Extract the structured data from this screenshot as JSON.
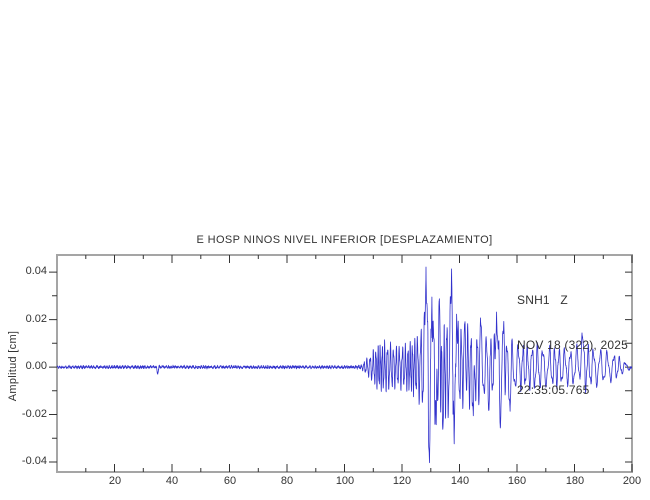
{
  "window": {
    "background": "#ffffff"
  },
  "legend": {
    "lines": [
      "SNH1   Z",
      "NOV 18 (322), 2025",
      "22:35:05.765"
    ]
  },
  "chart_data": {
    "type": "line",
    "title": "E HOSP NINOS NIVEL INFERIOR [DESPLAZAMIENTO]",
    "xlabel": "",
    "ylabel": "Amplitud [cm]",
    "station": "SNH1",
    "component": "Z",
    "date_label": "NOV 18 (322), 2025",
    "start_time_label": "22:35:05.765",
    "xlim": [
      0,
      200
    ],
    "ylim": [
      -0.0442,
      0.0472
    ],
    "grid": false,
    "legend_position": "upper-right-inside",
    "trace_color": "#3232cc",
    "frame_color": "#a5a5a5",
    "tick_color": "#333333",
    "text_color": "#333333",
    "x_major_ticks": [
      20,
      40,
      60,
      80,
      100,
      120,
      140,
      160,
      180,
      200
    ],
    "x_tick_labels": [
      "20",
      "40",
      "60",
      "80",
      "100",
      "120",
      "140",
      "160",
      "180",
      "200"
    ],
    "x_minor_ticks": [
      10,
      30,
      50,
      70,
      90,
      110,
      130,
      150,
      170,
      190
    ],
    "y_major_ticks": [
      0.04,
      0.02,
      0,
      -0.02,
      -0.04
    ],
    "y_tick_labels": [
      "0.04",
      "0.02",
      "0.00",
      "-0.02",
      "-0.04"
    ],
    "y_minor_ticks": [
      0.03,
      0.01,
      -0.01,
      -0.03
    ],
    "signal": {
      "description": "Vertical displacement seismogram: flat noise floor 0-105 s with a tiny glitch at 35 s, P-wave onset near 107 s, strong S-wave spikes peaking +0.043/-0.041 cm near 128-130 s, second spike cluster +0.041/-0.033 cm near 137-138 s, ragged coda decaying to zero by 200 s",
      "units": "cm",
      "peak_amplitude_cm": 0.043,
      "p_wave_onset_s": 107,
      "strong_motion_window_s": [
        127,
        140
      ],
      "sample_step_s": 0.05,
      "seed": 1337,
      "noise_amp": 0.00042,
      "envelope_points": [
        [
          0,
          0.0004
        ],
        [
          34.2,
          0.0004
        ],
        [
          35,
          0.0012
        ],
        [
          35.8,
          0.0004
        ],
        [
          104,
          0.0004
        ],
        [
          106,
          0.0008
        ],
        [
          107.5,
          0.0035
        ],
        [
          109,
          0.005
        ],
        [
          110.5,
          0.008
        ],
        [
          112,
          0.01
        ],
        [
          114,
          0.011
        ],
        [
          116,
          0.01
        ],
        [
          118,
          0.009
        ],
        [
          120,
          0.0095
        ],
        [
          122,
          0.01
        ],
        [
          124,
          0.012
        ],
        [
          126,
          0.015
        ],
        [
          127.5,
          0.021
        ],
        [
          129,
          0.028
        ],
        [
          130.5,
          0.024
        ],
        [
          132,
          0.024
        ],
        [
          133.5,
          0.026
        ],
        [
          135,
          0.021
        ],
        [
          136.5,
          0.024
        ],
        [
          138,
          0.026
        ],
        [
          139.5,
          0.019
        ],
        [
          141,
          0.017
        ],
        [
          143,
          0.018
        ],
        [
          145,
          0.015
        ],
        [
          147,
          0.016
        ],
        [
          149,
          0.014
        ],
        [
          151,
          0.013
        ],
        [
          153,
          0.015
        ],
        [
          155,
          0.013
        ],
        [
          157,
          0.012
        ],
        [
          159,
          0.011
        ],
        [
          161,
          0.01
        ],
        [
          164,
          0.0095
        ],
        [
          167,
          0.01
        ],
        [
          170,
          0.0085
        ],
        [
          173,
          0.009
        ],
        [
          176,
          0.008
        ],
        [
          179,
          0.0078
        ],
        [
          181.5,
          0.0095
        ],
        [
          183,
          0.012
        ],
        [
          185,
          0.009
        ],
        [
          188,
          0.008
        ],
        [
          191,
          0.007
        ],
        [
          193,
          0.0062
        ],
        [
          195,
          0.005
        ],
        [
          197,
          0.0028
        ],
        [
          198.5,
          0.0014
        ],
        [
          200,
          0.0007
        ]
      ],
      "spikes": [
        [
          35,
          -0.0028,
          0.5
        ],
        [
          128.35,
          0.0425,
          0.6
        ],
        [
          129.55,
          -0.0405,
          0.6
        ],
        [
          130.4,
          0.0295,
          0.5
        ],
        [
          131.9,
          -0.024,
          0.45
        ],
        [
          133.0,
          0.0285,
          0.5
        ],
        [
          134.2,
          -0.0265,
          0.5
        ],
        [
          137.25,
          0.0415,
          0.6
        ],
        [
          138.15,
          -0.0325,
          0.55
        ],
        [
          139.0,
          0.0225,
          0.45
        ],
        [
          141.9,
          0.019,
          0.5
        ],
        [
          144.8,
          -0.0205,
          0.5
        ],
        [
          147.3,
          0.0205,
          0.45
        ],
        [
          150.2,
          -0.0185,
          0.45
        ],
        [
          152.9,
          0.0235,
          0.55
        ],
        [
          154.2,
          -0.026,
          0.5
        ],
        [
          155.4,
          0.0195,
          0.45
        ],
        [
          157.6,
          -0.0185,
          0.5
        ],
        [
          182.6,
          0.0142,
          0.7
        ]
      ],
      "freq_profile": [
        [
          0,
          1.0
        ],
        [
          108,
          1.1
        ],
        [
          120,
          1.05
        ],
        [
          135,
          0.95
        ],
        [
          145,
          0.8
        ],
        [
          155,
          0.62
        ],
        [
          165,
          0.55
        ],
        [
          180,
          0.5
        ],
        [
          200,
          0.42
        ]
      ]
    }
  }
}
